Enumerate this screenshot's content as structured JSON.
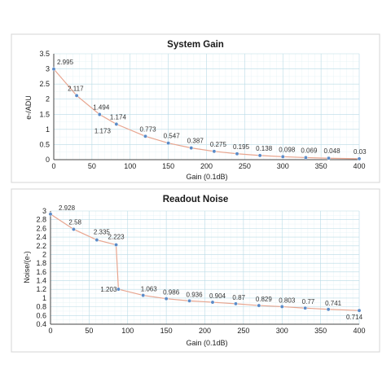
{
  "chart_data": [
    {
      "type": "line",
      "title": "System Gain",
      "xlabel": "Gain (0.1dB)",
      "ylabel": "e-/ADU",
      "xlim": [
        0,
        400
      ],
      "ylim": [
        0,
        3.5
      ],
      "xticks": [
        0,
        50,
        100,
        150,
        200,
        250,
        300,
        350,
        400
      ],
      "xtick_labels": [
        "0",
        "50",
        "100",
        "150",
        "200",
        "250",
        "300",
        "350",
        "400"
      ],
      "yticks": [
        0,
        0.5,
        1,
        1.5,
        2,
        2.5,
        3,
        3.5
      ],
      "ytick_labels": [
        "0",
        "0.5",
        "1",
        "1.5",
        "2",
        "2.5",
        "3",
        "3.5"
      ],
      "grid": true,
      "series": [
        {
          "x": [
            0,
            30,
            60,
            82,
            120,
            150,
            180,
            210,
            240,
            270,
            300,
            330,
            360,
            400
          ],
          "y": [
            2.995,
            2.117,
            1.494,
            1.174,
            0.773,
            0.547,
            0.387,
            0.275,
            0.195,
            0.138,
            0.098,
            0.069,
            0.048,
            0.03
          ],
          "point_labels": [
            "2.995",
            "2.117",
            "1.494",
            "1.174",
            "0.773",
            "0.547",
            "0.387",
            "0.275",
            "0.195",
            "0.138",
            "0.098",
            "0.069",
            "0.048",
            "0.03"
          ],
          "extra_labels": [
            "1.173"
          ]
        }
      ]
    },
    {
      "type": "line",
      "title": "Readout Noise",
      "xlabel": "Gain (0.1dB)",
      "ylabel": "Noise/(e-)",
      "xlim": [
        0,
        400
      ],
      "ylim": [
        0.4,
        3
      ],
      "xticks": [
        0,
        50,
        100,
        150,
        200,
        250,
        300,
        350,
        400
      ],
      "xtick_labels": [
        "0",
        "50",
        "100",
        "150",
        "200",
        "250",
        "300",
        "350",
        "400"
      ],
      "yticks": [
        0.4,
        0.6,
        0.8,
        1,
        1.2,
        1.4,
        1.6,
        1.8,
        2,
        2.2,
        2.4,
        2.6,
        2.8,
        3
      ],
      "ytick_labels": [
        "0.4",
        "0.6",
        "0.8",
        "1",
        "1.2",
        "1.4",
        "1.6",
        "1.8",
        "2",
        "2.2",
        "2.4",
        "2.6",
        "2.8",
        "3"
      ],
      "grid": true,
      "series": [
        {
          "x": [
            0,
            30,
            60,
            85,
            88,
            120,
            150,
            180,
            210,
            240,
            270,
            300,
            330,
            360,
            400
          ],
          "y": [
            2.928,
            2.58,
            2.335,
            2.223,
            1.203,
            1.063,
            0.986,
            0.936,
            0.904,
            0.87,
            0.829,
            0.803,
            0.77,
            0.741,
            0.714
          ],
          "point_labels": [
            "2.928",
            "2.58",
            "2.335",
            "2.223",
            "1.203",
            "1.063",
            "0.986",
            "0.936",
            "0.904",
            "0.87",
            "0.829",
            "0.803",
            "0.77",
            "0.741",
            "0.714"
          ]
        }
      ]
    }
  ]
}
